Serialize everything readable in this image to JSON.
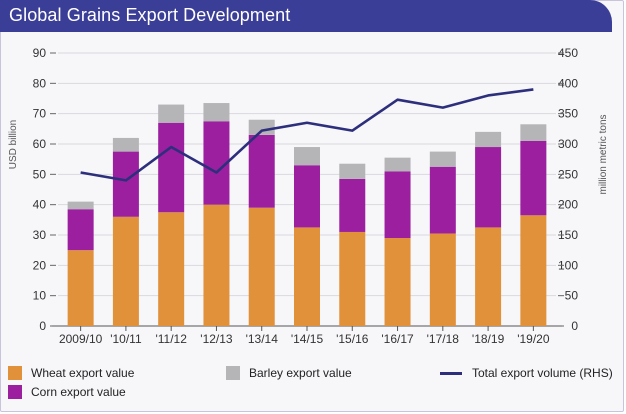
{
  "chart_data": {
    "type": "bar",
    "title": "Global Grains Export Development",
    "categories": [
      "2009/10",
      "'10/11",
      "'11/12",
      "'12/13",
      "'13/14",
      "'14/15",
      "'15/16",
      "'16/17",
      "'17/18",
      "'18/19",
      "'19/20"
    ],
    "series": [
      {
        "name": "Wheat export value",
        "axis": "left",
        "stack": "value",
        "color": "#e0913a",
        "values": [
          25,
          36,
          37.5,
          40,
          39,
          32.5,
          31,
          29,
          30.5,
          32.5,
          36.5
        ]
      },
      {
        "name": "Corn export value",
        "axis": "left",
        "stack": "value",
        "color": "#9c1fa0",
        "values": [
          13.5,
          21.5,
          29.5,
          27.5,
          24,
          20.5,
          17.5,
          22,
          22,
          26.5,
          24.5
        ]
      },
      {
        "name": "Barley export value",
        "axis": "left",
        "stack": "value",
        "color": "#b5b5b8",
        "values": [
          2.5,
          4.5,
          6,
          6,
          5,
          6,
          5,
          4.5,
          5,
          5,
          5.5
        ]
      },
      {
        "name": "Total export volume (RHS)",
        "axis": "right",
        "type": "line",
        "color": "#2e2f7c",
        "values": [
          253,
          240,
          295,
          253,
          322,
          335,
          322,
          373,
          360,
          380,
          390
        ]
      }
    ],
    "ylabel": "USD billion",
    "ylim": [
      0,
      90
    ],
    "yticks": [
      0,
      10,
      20,
      30,
      40,
      50,
      60,
      70,
      80,
      90
    ],
    "y2label": "million metric tons",
    "y2lim": [
      0,
      450
    ],
    "y2ticks": [
      0,
      50,
      100,
      150,
      200,
      250,
      300,
      350,
      400,
      450
    ],
    "grid": true,
    "legend_position": "bottom"
  },
  "legend": {
    "wheat": "Wheat export value",
    "corn": "Corn export value",
    "barley": "Barley export value",
    "total": "Total export volume (RHS)"
  },
  "colors": {
    "title_bar": "#3b3e97",
    "wheat": "#e0913a",
    "corn": "#9c1fa0",
    "barley": "#b5b5b8",
    "line": "#2e2f7c"
  }
}
